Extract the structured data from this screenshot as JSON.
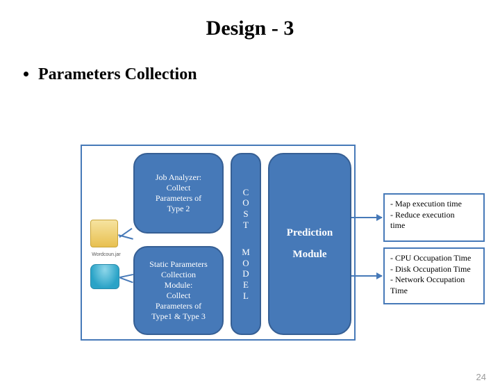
{
  "title": "Design - 3",
  "bullet": "Parameters Collection",
  "diagram": {
    "frame_border_color": "#4679b8",
    "box_fill": "#4679b8",
    "box_border": "#365f94",
    "box_text_color": "#ffffff",
    "left_top": "Job Analyzer:\nCollect\nParameters of\nType 2",
    "left_bot": "Static Parameters\nCollection\nModule:\nCollect\nParameters of\nType1 & Type 3",
    "mid_top_letters": [
      "C",
      "O",
      "S",
      "T"
    ],
    "mid_bot_letters": [
      "M",
      "O",
      "D",
      "E",
      "L"
    ],
    "right_top": "Prediction",
    "right_bot": "Module",
    "icon_js_label": "Wordcoun.jar"
  },
  "outputs": {
    "top_lines": [
      "- Map execution time",
      "- Reduce execution",
      "time"
    ],
    "bot_lines": [
      "- CPU Occupation Time",
      "- Disk Occupation Time",
      "- Network Occupation",
      "Time"
    ]
  },
  "slide_number": "24",
  "colors": {
    "bg": "#ffffff",
    "text": "#000000",
    "accent": "#4679b8",
    "slidenum": "#9a9a9a"
  }
}
